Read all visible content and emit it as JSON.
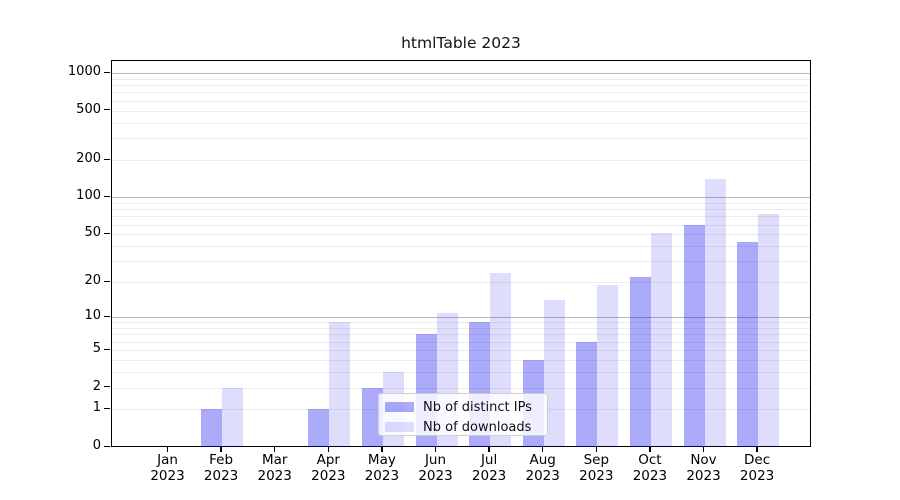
{
  "title": "htmlTable 2023",
  "chart_data": {
    "type": "bar",
    "title": "htmlTable 2023",
    "categories": [
      "Jan 2023",
      "Feb 2023",
      "Mar 2023",
      "Apr 2023",
      "May 2023",
      "Jun 2023",
      "Jul 2023",
      "Aug 2023",
      "Sep 2023",
      "Oct 2023",
      "Nov 2023",
      "Dec 2023"
    ],
    "series": [
      {
        "name": "Nb of distinct IPs",
        "color": "rgba(8,8,235,0.345)",
        "values": [
          0,
          1,
          0,
          1,
          2,
          7,
          9,
          4,
          6,
          22,
          60,
          43
        ]
      },
      {
        "name": "Nb of downloads",
        "color": "rgba(8,8,235,0.135)",
        "values": [
          0,
          2,
          0,
          9,
          3,
          11,
          24,
          14,
          19,
          51,
          140,
          73
        ]
      }
    ],
    "y_axis": {
      "scale": "log10(value+1)",
      "tick_values": [
        0,
        1,
        2,
        5,
        10,
        20,
        50,
        100,
        200,
        500,
        1000
      ],
      "range": [
        0,
        1350
      ],
      "major_gridlines": [
        10,
        100,
        1000
      ],
      "minor_gridlines": [
        1,
        2,
        3,
        4,
        5,
        6,
        7,
        8,
        9,
        20,
        30,
        40,
        50,
        60,
        70,
        80,
        90,
        200,
        300,
        400,
        500,
        600,
        700,
        800,
        900
      ]
    },
    "xlabel": "",
    "ylabel": "",
    "grid": "on",
    "legend_position": "lower-center-over-plot"
  },
  "colors": {
    "bar_ips_rendered": "#aaaaf6",
    "bar_downloads_rendered": "#dedefb",
    "major_grid": "#b9b9b9",
    "minor_grid": "#ececec",
    "axis": "#000000",
    "legend_border": "#cfcfcf"
  }
}
